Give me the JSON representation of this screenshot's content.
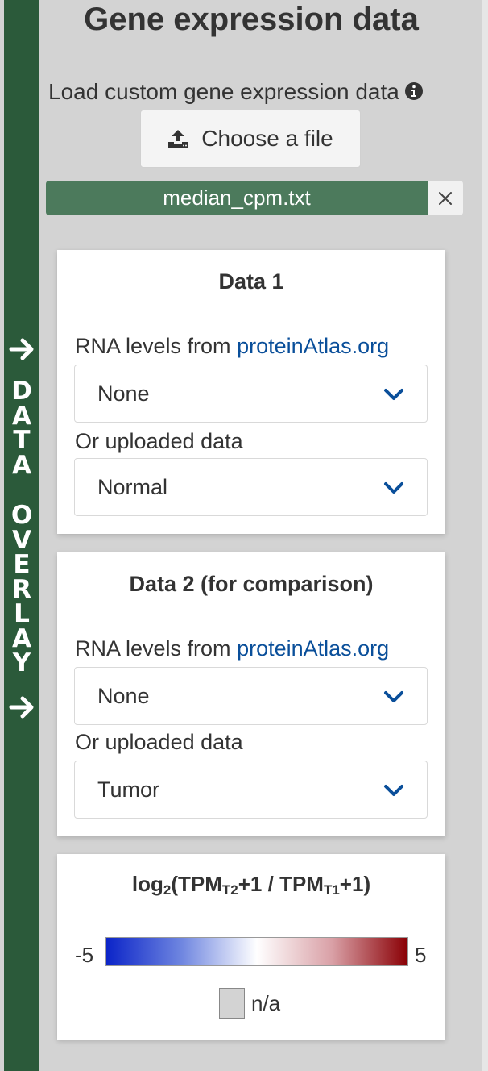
{
  "sidebar": {
    "label_top": [
      "D",
      "A",
      "T",
      "A"
    ],
    "label_bottom": [
      "O",
      "V",
      "E",
      "R",
      "L",
      "A",
      "Y"
    ],
    "arrow_icon": "arrow-right-icon",
    "color": "#2b5a3a"
  },
  "header": {
    "title": "Gene expression data"
  },
  "upload": {
    "label": "Load custom gene expression data",
    "info_icon": "info-circle-icon",
    "button_label": "Choose a file",
    "button_icon": "upload-icon",
    "file_name": "median_cpm.txt",
    "remove_icon": "close-icon"
  },
  "data1": {
    "title": "Data 1",
    "rna_label": "RNA levels from ",
    "rna_link": "proteinAtlas.org",
    "rna_select_value": "None",
    "uploaded_label": "Or uploaded data",
    "uploaded_select_value": "Normal"
  },
  "data2": {
    "title": "Data 2 (for comparison)",
    "rna_label": "RNA levels from ",
    "rna_link": "proteinAtlas.org",
    "rna_select_value": "None",
    "uploaded_label": "Or uploaded data",
    "uploaded_select_value": "Tumor"
  },
  "legend": {
    "title_prefix": "log",
    "title_base": "2",
    "title_open": "(TPM",
    "title_sub1": "T2",
    "title_mid": "+1 / TPM",
    "title_sub2": "T1",
    "title_close": "+1)",
    "min": "-5",
    "max": "5",
    "na_label": "n/a",
    "colors": {
      "low": "#0b24c8",
      "mid": "#ffffff",
      "high": "#8a0005",
      "na": "#d3d3d3"
    }
  },
  "colors": {
    "link": "#0a4f9a",
    "file_chip": "#4c7a5c"
  }
}
